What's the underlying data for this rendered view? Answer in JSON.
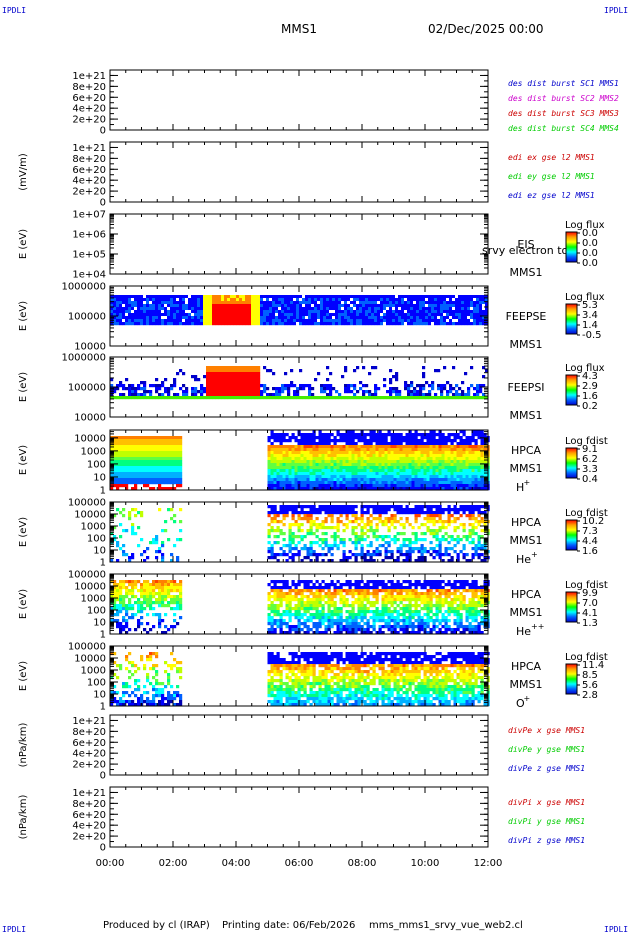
{
  "header": {
    "corner_label": "IPDLI",
    "mission": "MMS1",
    "date": "02/Dec/2025 00:00"
  },
  "footer": {
    "produced_by": "Produced by cl (IRAP)",
    "printing_date": "Printing date: 06/Feb/2026",
    "file": "mms_mms1_srvy_vue_web2.cl"
  },
  "time_axis": {
    "range_hours": [
      0,
      12
    ],
    "ticks": [
      "00:00",
      "02:00",
      "04:00",
      "06:00",
      "08:00",
      "10:00",
      "12:00"
    ]
  },
  "colors": {
    "blue": "#0000cc",
    "magenta": "#cc00cc",
    "red": "#cc0000",
    "green": "#00cc00"
  },
  "chart_data": [
    {
      "id": "dist",
      "type": "line",
      "ylabel": "",
      "ylim": [
        0,
        1.1e+21
      ],
      "tick_labels": [
        "1e+21",
        "8e+20",
        "6e+20",
        "4e+20",
        "2e+20",
        "0"
      ],
      "tick_values": [
        1e+21,
        8e+20,
        6e+20,
        4e+20,
        2e+20,
        0
      ],
      "legend": [
        {
          "text": "des dist burst SC1 MMS1",
          "color": "#0000cc"
        },
        {
          "text": "des dist burst SC2 MMS2",
          "color": "#cc00cc"
        },
        {
          "text": "des dist burst SC3 MMS3",
          "color": "#cc0000"
        },
        {
          "text": "des dist burst SC4 MMS4",
          "color": "#00cc00"
        }
      ]
    },
    {
      "id": "edi",
      "type": "line",
      "ylabel": "(mV/m)",
      "ylim": [
        0,
        1.1e+21
      ],
      "tick_labels": [
        "1e+21",
        "8e+20",
        "6e+20",
        "4e+20",
        "2e+20",
        "0"
      ],
      "tick_values": [
        1e+21,
        8e+20,
        6e+20,
        4e+20,
        2e+20,
        0
      ],
      "legend": [
        {
          "text": "edi ex gse l2 MMS1",
          "color": "#cc0000"
        },
        {
          "text": "edi ey gse l2 MMS1",
          "color": "#00cc00"
        },
        {
          "text": "edi ez gse l2 MMS1",
          "color": "#0000cc"
        }
      ]
    },
    {
      "id": "eis",
      "type": "heatmap",
      "ylabel": "E (eV)",
      "ylim": [
        10000,
        10000000
      ],
      "tick_labels": [
        "1e+07",
        "1e+06",
        "1e+05",
        "1e+04"
      ],
      "tick_values": [
        10000000,
        1000000,
        100000,
        10000
      ],
      "instrument": "EIS",
      "instrument2": "srvy electron to",
      "spacecraft": "MMS1",
      "cbar_title": "Log flux",
      "cbar_labels": [
        "0.0",
        "0.0",
        "0.0",
        "0.0"
      ]
    },
    {
      "id": "feepse",
      "type": "heatmap",
      "ylabel": "E (eV)",
      "ylim": [
        10000,
        1000000
      ],
      "tick_labels": [
        "1000000",
        "100000",
        "10000"
      ],
      "tick_values": [
        1000000,
        100000,
        10000
      ],
      "instrument": "FEEPSE",
      "spacecraft": "MMS1",
      "cbar_title": "Log flux",
      "cbar_labels": [
        "5.3",
        "3.4",
        "1.4",
        "-0.5"
      ]
    },
    {
      "id": "feepsi",
      "type": "heatmap",
      "ylabel": "E (eV)",
      "ylim": [
        10000,
        1000000
      ],
      "tick_labels": [
        "1000000",
        "100000",
        "10000"
      ],
      "tick_values": [
        1000000,
        100000,
        10000
      ],
      "instrument": "FEEPSI",
      "spacecraft": "MMS1",
      "cbar_title": "Log flux",
      "cbar_labels": [
        "4.3",
        "2.9",
        "1.6",
        "0.2"
      ]
    },
    {
      "id": "hpca_h",
      "type": "heatmap",
      "ylabel": "E (eV)",
      "ylim": [
        1,
        40000
      ],
      "tick_labels": [
        "10000",
        "1000",
        "100",
        "10",
        "1"
      ],
      "tick_values": [
        10000,
        1000,
        100,
        10,
        1
      ],
      "instrument": "HPCA",
      "spacecraft": "MMS1",
      "species": "H",
      "charge": "+",
      "cbar_title": "Log fdist",
      "cbar_labels": [
        "9.1",
        "6.2",
        "3.3",
        "0.4"
      ]
    },
    {
      "id": "hpca_he",
      "type": "heatmap",
      "ylabel": "E (eV)",
      "ylim": [
        1,
        100000
      ],
      "tick_labels": [
        "100000",
        "10000",
        "1000",
        "100",
        "10",
        "1"
      ],
      "tick_values": [
        100000,
        10000,
        1000,
        100,
        10,
        1
      ],
      "instrument": "HPCA",
      "spacecraft": "MMS1",
      "species": "He",
      "charge": "+",
      "cbar_title": "Log fdist",
      "cbar_labels": [
        "10.2",
        "7.3",
        "4.4",
        "1.6"
      ]
    },
    {
      "id": "hpca_he2",
      "type": "heatmap",
      "ylabel": "E (eV)",
      "ylim": [
        1,
        100000
      ],
      "tick_labels": [
        "100000",
        "10000",
        "1000",
        "100",
        "10",
        "1"
      ],
      "tick_values": [
        100000,
        10000,
        1000,
        100,
        10,
        1
      ],
      "instrument": "HPCA",
      "spacecraft": "MMS1",
      "species": "He",
      "charge": "++",
      "cbar_title": "Log fdist",
      "cbar_labels": [
        "9.9",
        "7.0",
        "4.1",
        "1.3"
      ]
    },
    {
      "id": "hpca_o",
      "type": "heatmap",
      "ylabel": "E (eV)",
      "ylim": [
        1,
        100000
      ],
      "tick_labels": [
        "100000",
        "10000",
        "1000",
        "100",
        "10",
        "1"
      ],
      "tick_values": [
        100000,
        10000,
        1000,
        100,
        10,
        1
      ],
      "instrument": "HPCA",
      "spacecraft": "MMS1",
      "species": "O",
      "charge": "+",
      "cbar_title": "Log fdist",
      "cbar_labels": [
        "11.4",
        "8.5",
        "5.6",
        "2.8"
      ]
    },
    {
      "id": "divpe",
      "type": "line",
      "ylabel": "(nPa/km)",
      "ylim": [
        0,
        1.1e+21
      ],
      "tick_labels": [
        "1e+21",
        "8e+20",
        "6e+20",
        "4e+20",
        "2e+20",
        "0"
      ],
      "tick_values": [
        1e+21,
        8e+20,
        6e+20,
        4e+20,
        2e+20,
        0
      ],
      "legend": [
        {
          "text": "divPe x gse MMS1",
          "color": "#cc0000"
        },
        {
          "text": "divPe y gse MMS1",
          "color": "#00cc00"
        },
        {
          "text": "divPe z gse MMS1",
          "color": "#0000cc"
        }
      ]
    },
    {
      "id": "divpi",
      "type": "line",
      "ylabel": "(nPa/km)",
      "ylim": [
        0,
        1.1e+21
      ],
      "tick_labels": [
        "1e+21",
        "8e+20",
        "6e+20",
        "4e+20",
        "2e+20",
        "0"
      ],
      "tick_values": [
        1e+21,
        8e+20,
        6e+20,
        4e+20,
        2e+20,
        0
      ],
      "legend": [
        {
          "text": "divPi x gse MMS1",
          "color": "#cc0000"
        },
        {
          "text": "divPi y gse MMS1",
          "color": "#00cc00"
        },
        {
          "text": "divPi z gse MMS1",
          "color": "#0000cc"
        }
      ]
    }
  ]
}
